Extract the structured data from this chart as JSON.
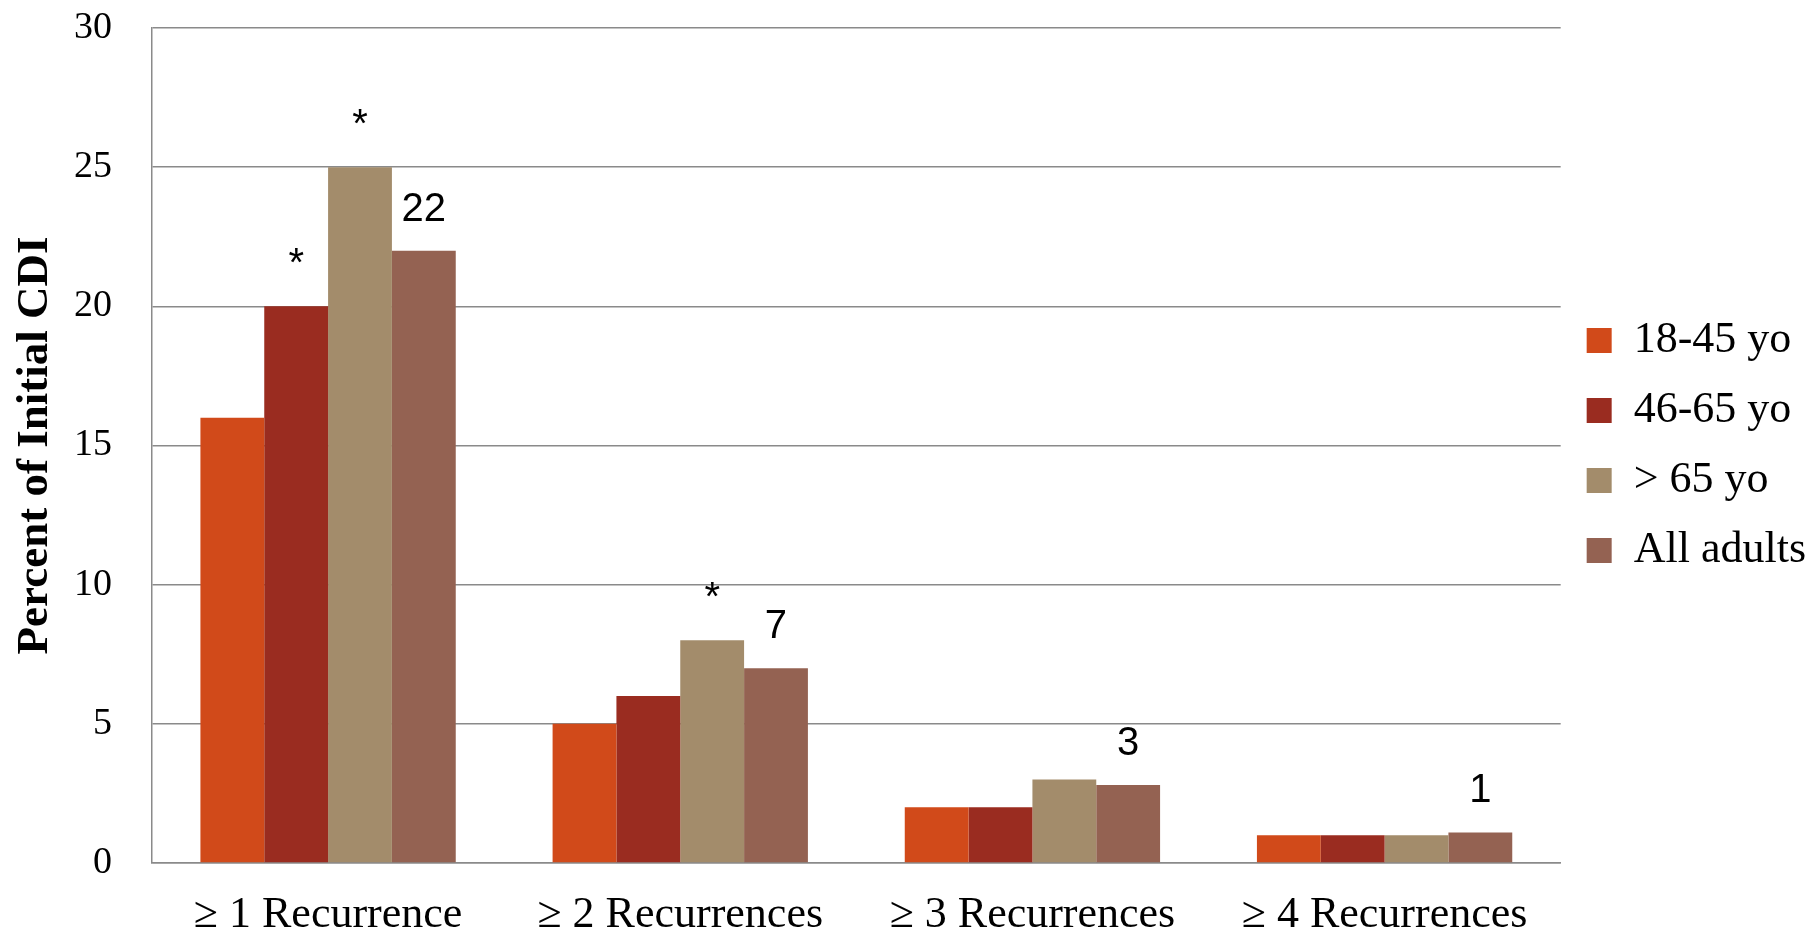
{
  "chart_data": {
    "type": "bar",
    "ylabel": "Percent of Initial CDI",
    "categories": [
      "≥ 1 Recurrence",
      "≥ 2 Recurrences",
      "≥ 3 Recurrences",
      "≥ 4 Recurrences"
    ],
    "series": [
      {
        "name": "18-45 yo",
        "color": "#d14a1a",
        "values": [
          16,
          5,
          2,
          1
        ]
      },
      {
        "name": "46-65 yo",
        "color": "#9a2c20",
        "values": [
          20,
          6,
          2,
          1
        ],
        "value_labels": [
          "*",
          null,
          null,
          null
        ]
      },
      {
        "name": "> 65 yo",
        "color": "#a38c6b",
        "values": [
          25,
          8,
          3,
          1
        ],
        "value_labels": [
          "*",
          "*",
          null,
          null
        ]
      },
      {
        "name": "All adults",
        "color": "#946252",
        "values": [
          22,
          7,
          2.8,
          1.1
        ],
        "value_labels": [
          "22",
          "7",
          "3",
          "1"
        ]
      }
    ],
    "ylim": [
      0,
      30
    ],
    "yticks": [
      0,
      5,
      10,
      15,
      20,
      25,
      30
    ],
    "grid": "y",
    "legend": "right"
  }
}
